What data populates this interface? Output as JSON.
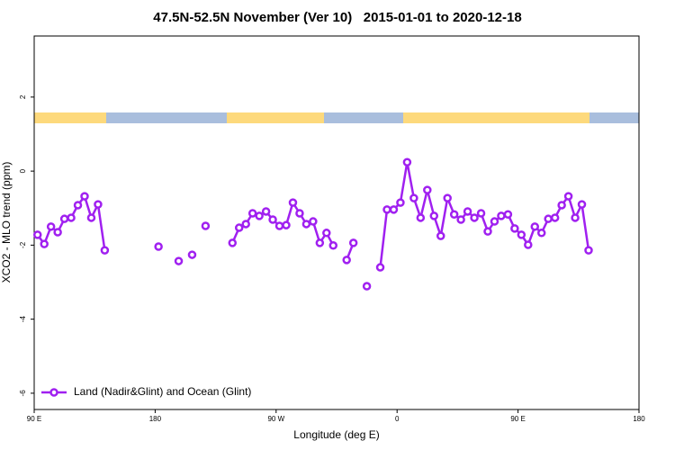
{
  "chart_data": {
    "type": "line",
    "title": "47.5N-52.5N November (Ver 10)   2015-01-01 to 2020-12-18",
    "x_label": "Longitude (deg E)",
    "y_label": "XCO2 - MLO trend (ppm)",
    "x": [
      92.5,
      97.5,
      102.5,
      107.5,
      112.5,
      117.5,
      122.5,
      127.5,
      132.5,
      137.5,
      142.5,
      147.5,
      182.5,
      187.5,
      197.5,
      202.5,
      207.5,
      212.5,
      217.5,
      227.5,
      237.5,
      242.5,
      247.5,
      252.5,
      257.5,
      262.5,
      267.5,
      272.5,
      277.5,
      282.5,
      287.5,
      292.5,
      297.5,
      302.5,
      307.5,
      312.5,
      317.5,
      322.5,
      327.5,
      332.5,
      337.5,
      342.5,
      347.5,
      352.5,
      357.5,
      362.5,
      367.5,
      372.5,
      377.5,
      382.5,
      387.5,
      392.5,
      397.5,
      402.5,
      407.5,
      412.5,
      417.5,
      422.5,
      427.5,
      432.5,
      437.5,
      442.5,
      447.5,
      452.5,
      457.5,
      462.5,
      467.5,
      472.5,
      477.5,
      482.5,
      487.5,
      492.5,
      497.5,
      502.5
    ],
    "series": [
      {
        "name": "Land (Nadir&Glint) and Ocean (Glint)",
        "color": "#a020f0",
        "values": [
          -1.72,
          -1.97,
          -1.5,
          -1.65,
          -1.29,
          -1.26,
          -0.92,
          -0.68,
          -1.26,
          -0.9,
          -2.14,
          null,
          -2.04,
          null,
          -2.43,
          null,
          -2.26,
          null,
          -1.48,
          null,
          -1.94,
          -1.53,
          -1.43,
          -1.14,
          -1.21,
          -1.09,
          -1.31,
          -1.48,
          -1.46,
          -0.85,
          -1.14,
          -1.43,
          -1.36,
          -1.94,
          -1.67,
          -2.01,
          null,
          -2.4,
          -1.94,
          null,
          -3.11,
          null,
          -2.6,
          -1.04,
          -1.04,
          -0.85,
          0.24,
          -0.73,
          -1.26,
          -0.51,
          -1.21,
          -1.75,
          -0.73,
          -1.17,
          -1.31,
          -1.09,
          -1.26,
          -1.14,
          -1.63,
          -1.36,
          -1.21,
          -1.17,
          -1.55,
          -1.72,
          -1.99,
          -1.5,
          -1.67,
          -1.29,
          -1.26,
          -0.92,
          -0.68,
          -1.26,
          -0.9,
          -2.14
        ]
      }
    ],
    "xlim": [
      90,
      540
    ],
    "xticks": [
      {
        "value": 90,
        "label": "90 E"
      },
      180,
      {
        "value": 270,
        "label": "90 W"
      },
      {
        "value": 360,
        "label": "0"
      },
      {
        "value": 450,
        "label": "90 E"
      },
      {
        "value": 540,
        "label": "180"
      }
    ],
    "ylim": [
      -6.44,
      3.65
    ],
    "yticks": [
      -6,
      -4,
      -2,
      0,
      2
    ],
    "legend_position": "bottom-left"
  }
}
